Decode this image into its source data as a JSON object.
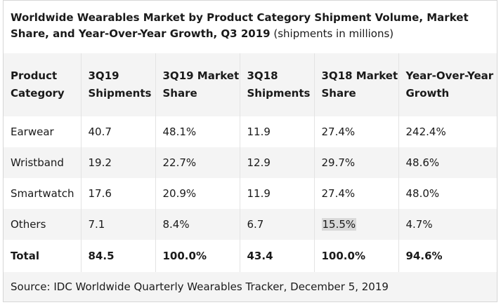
{
  "title": {
    "bold": "Worldwide Wearables Market by Product Category Shipment Volume, Market Share, and Year-Over-Year Growth, Q3 2019",
    "normal": "(shipments in millions)"
  },
  "columns": [
    "Product Category",
    "3Q19 Shipments",
    "3Q19 Market Share",
    "3Q18 Shipments",
    "3Q18 Market Share",
    "Year-Over-Year Growth"
  ],
  "rows": [
    [
      "Earwear",
      "40.7",
      "48.1%",
      "11.9",
      "27.4%",
      "242.4%"
    ],
    [
      "Wristband",
      "19.2",
      "22.7%",
      "12.9",
      "29.7%",
      "48.6%"
    ],
    [
      "Smartwatch",
      "17.6",
      "20.9%",
      "11.9",
      "27.4%",
      "48.0%"
    ],
    [
      "Others",
      "7.1",
      "8.4%",
      "6.7",
      "15.5%",
      "4.7%"
    ]
  ],
  "total": [
    "Total",
    "84.5",
    "100.0%",
    "43.4",
    "100.0%",
    "94.6%"
  ],
  "source": "Source: IDC Worldwide Quarterly Wearables Tracker, December 5, 2019",
  "colors": {
    "stripe": "#f4f4f4",
    "highlight": "#d9d9d9",
    "border": "#d6d6d6"
  }
}
